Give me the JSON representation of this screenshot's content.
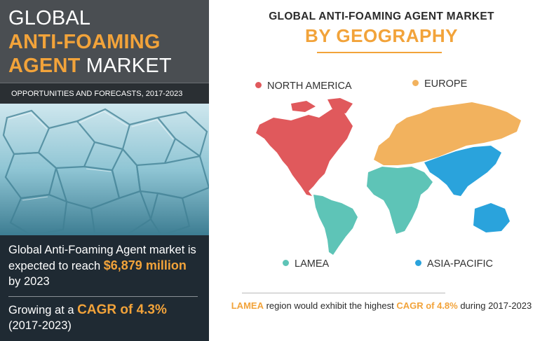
{
  "left": {
    "title_line1": "GLOBAL",
    "title_line2": "ANTI-FOAMING",
    "title_line3_orange": "AGENT",
    "title_line3_white": " MARKET",
    "subtitle": "OPPORTUNITIES AND FORECASTS, 2017-2023",
    "stat1_prefix": "Global Anti-Foaming Agent market is expected to reach ",
    "stat1_value": "$6,879 million",
    "stat1_suffix": " by 2023",
    "stat2_prefix": "Growing at a ",
    "stat2_value": "CAGR of 4.3%",
    "stat2_suffix": "(2017-2023)"
  },
  "right": {
    "title": "GLOBAL ANTI-FOAMING AGENT MARKET",
    "subtitle": "BY GEOGRAPHY",
    "legend": {
      "north_america": "NORTH AMERICA",
      "europe": "EUROPE",
      "lamea": "LAMEA",
      "asia_pacific": "ASIA-PACIFIC"
    },
    "note_region": "LAMEA",
    "note_middle": " region would exhibit the highest ",
    "note_value": "CAGR of 4.8%",
    "note_suffix": " during 2017-2023"
  },
  "colors": {
    "orange": "#f2a33a",
    "north_america": "#e0595c",
    "europe": "#f2b25e",
    "lamea": "#5ec4b7",
    "asia_pacific": "#2aa3dc",
    "dark_panel": "#1d2328",
    "title_block": "#4a4e52"
  }
}
